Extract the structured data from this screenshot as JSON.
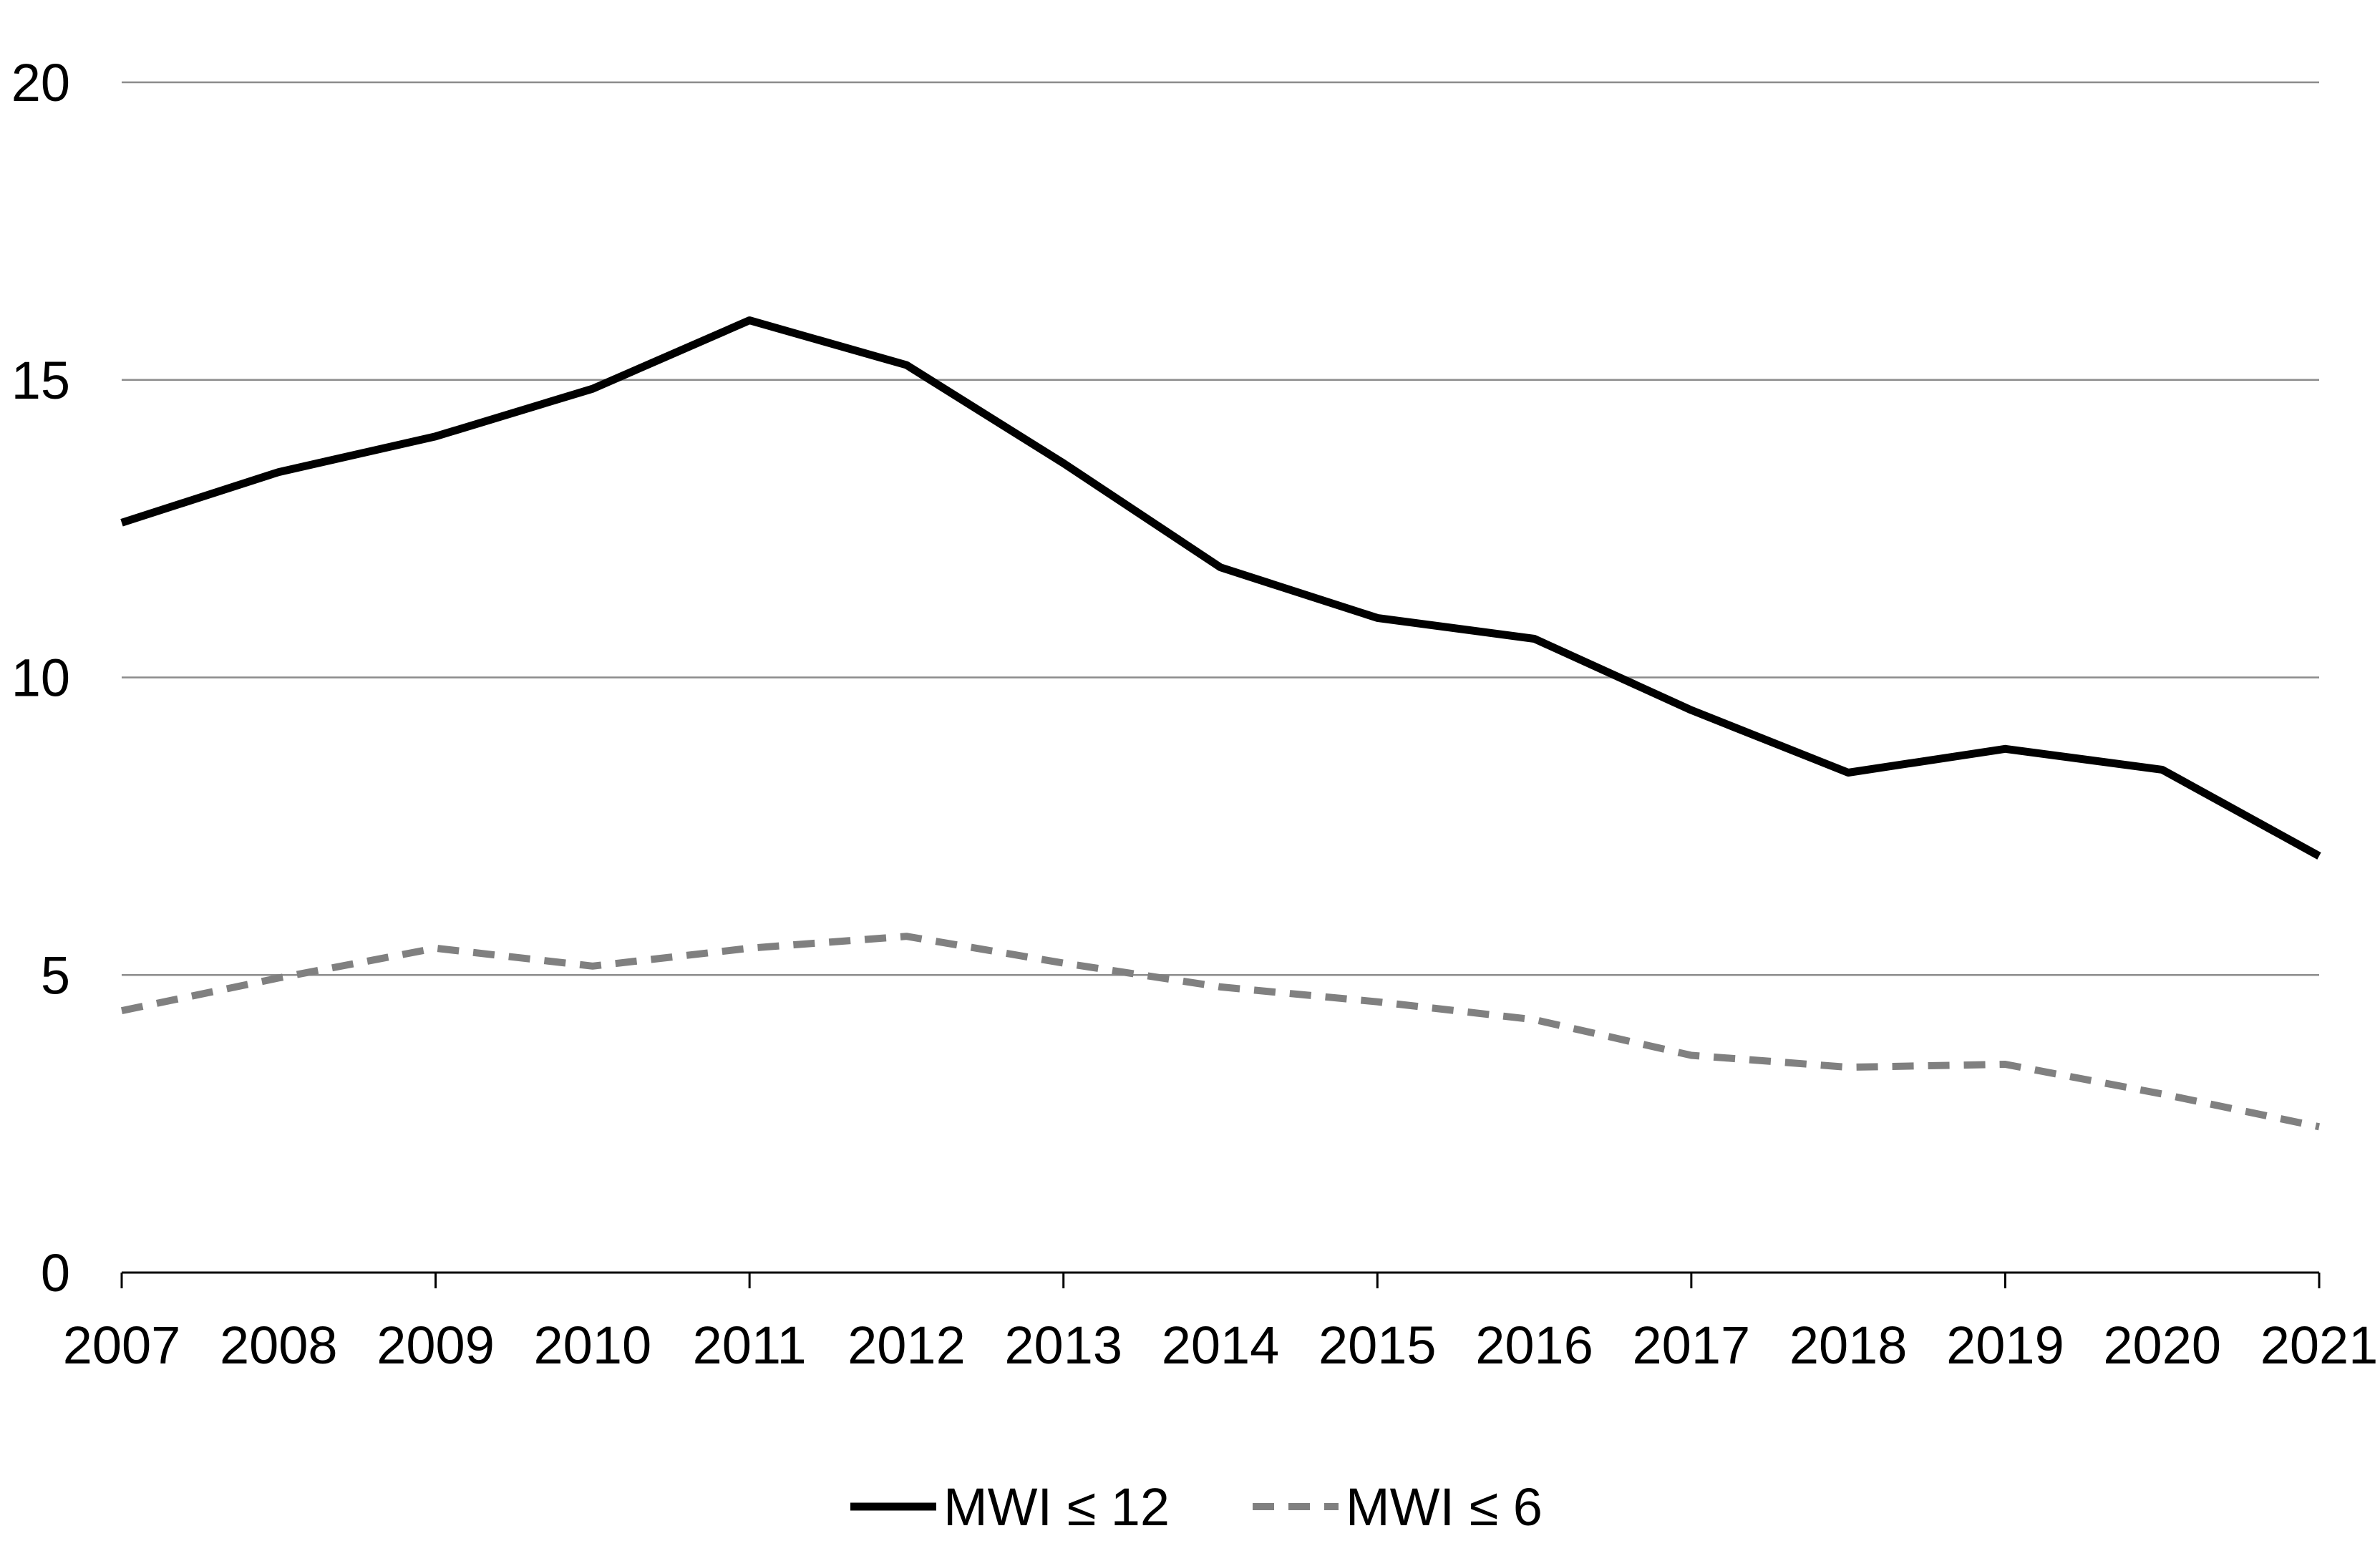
{
  "chart_data": {
    "type": "line",
    "title": "",
    "xlabel": "",
    "ylabel": "",
    "x": [
      "2007",
      "2008",
      "2009",
      "2010",
      "2011",
      "2012",
      "2013",
      "2014",
      "2015",
      "2016",
      "2017",
      "2018",
      "2019",
      "2020",
      "2021"
    ],
    "ylim": [
      0,
      20
    ],
    "yticks": [
      "0",
      "5",
      "10",
      "15",
      "20"
    ],
    "grid": true,
    "legend_position": "bottom",
    "series": [
      {
        "name": "MWI ≤ 12",
        "style": "solid",
        "color": "#000000",
        "values": [
          12.6,
          13.45,
          14.05,
          14.85,
          16.0,
          15.25,
          13.6,
          11.85,
          11.0,
          10.65,
          9.45,
          8.4,
          8.8,
          8.45,
          7.0
        ]
      },
      {
        "name": "MWI ≤ 6",
        "style": "dashed",
        "color": "#808080",
        "values": [
          4.4,
          4.95,
          5.45,
          5.15,
          5.45,
          5.65,
          5.2,
          4.8,
          4.55,
          4.25,
          3.65,
          3.45,
          3.5,
          3.0,
          2.45
        ]
      }
    ]
  }
}
